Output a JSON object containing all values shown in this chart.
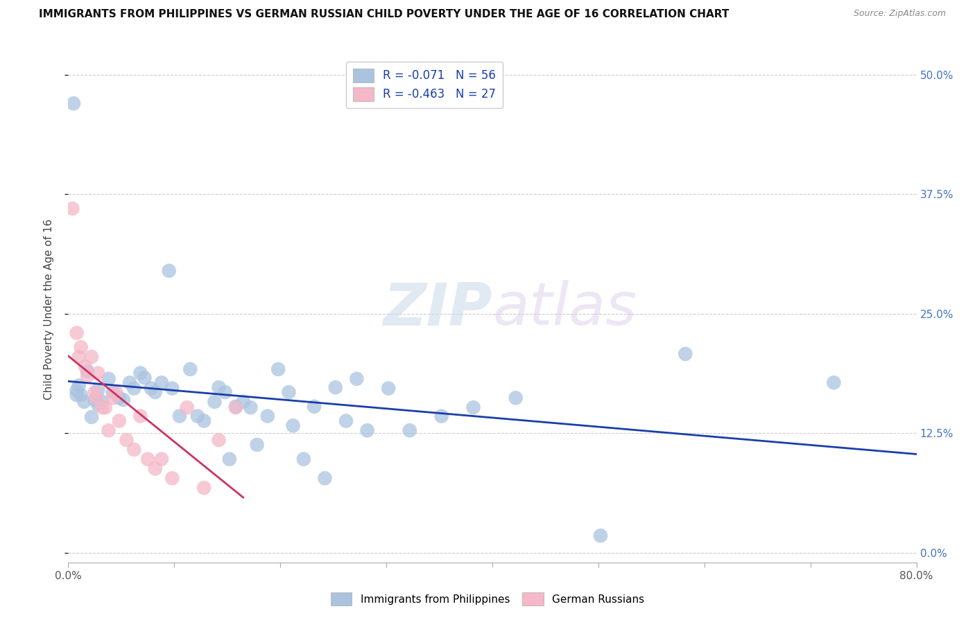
{
  "title": "IMMIGRANTS FROM PHILIPPINES VS GERMAN RUSSIAN CHILD POVERTY UNDER THE AGE OF 16 CORRELATION CHART",
  "source": "Source: ZipAtlas.com",
  "ylabel": "Child Poverty Under the Age of 16",
  "xlim": [
    0.0,
    0.8
  ],
  "ylim": [
    -0.01,
    0.52
  ],
  "legend1_label": "R = -0.071   N = 56",
  "legend2_label": "R = -0.463   N = 27",
  "blue_color": "#aac4e0",
  "pink_color": "#f4b8c8",
  "line_blue": "#1a3fa8",
  "line_pink": "#d03060",
  "watermark_zip": "ZIP",
  "watermark_atlas": "atlas",
  "philippines_x": [
    0.005,
    0.028,
    0.008,
    0.012,
    0.01,
    0.018,
    0.008,
    0.015,
    0.022,
    0.032,
    0.028,
    0.025,
    0.038,
    0.042,
    0.048,
    0.052,
    0.058,
    0.062,
    0.068,
    0.072,
    0.078,
    0.082,
    0.088,
    0.095,
    0.098,
    0.105,
    0.115,
    0.122,
    0.128,
    0.138,
    0.142,
    0.148,
    0.152,
    0.158,
    0.165,
    0.172,
    0.178,
    0.188,
    0.198,
    0.208,
    0.212,
    0.222,
    0.232,
    0.242,
    0.252,
    0.262,
    0.272,
    0.282,
    0.302,
    0.322,
    0.352,
    0.382,
    0.422,
    0.502,
    0.582,
    0.722
  ],
  "philippines_y": [
    0.47,
    0.155,
    0.17,
    0.165,
    0.175,
    0.19,
    0.165,
    0.158,
    0.142,
    0.158,
    0.17,
    0.16,
    0.182,
    0.168,
    0.162,
    0.16,
    0.178,
    0.172,
    0.188,
    0.183,
    0.172,
    0.168,
    0.178,
    0.295,
    0.172,
    0.143,
    0.192,
    0.143,
    0.138,
    0.158,
    0.173,
    0.168,
    0.098,
    0.153,
    0.158,
    0.152,
    0.113,
    0.143,
    0.192,
    0.168,
    0.133,
    0.098,
    0.153,
    0.078,
    0.173,
    0.138,
    0.182,
    0.128,
    0.172,
    0.128,
    0.143,
    0.152,
    0.162,
    0.018,
    0.208,
    0.178
  ],
  "german_russian_x": [
    0.004,
    0.008,
    0.01,
    0.012,
    0.016,
    0.018,
    0.022,
    0.025,
    0.026,
    0.028,
    0.032,
    0.035,
    0.038,
    0.042,
    0.045,
    0.048,
    0.055,
    0.062,
    0.068,
    0.075,
    0.082,
    0.088,
    0.098,
    0.112,
    0.128,
    0.142,
    0.158
  ],
  "german_russian_y": [
    0.36,
    0.23,
    0.205,
    0.215,
    0.195,
    0.185,
    0.205,
    0.168,
    0.162,
    0.188,
    0.152,
    0.152,
    0.128,
    0.162,
    0.168,
    0.138,
    0.118,
    0.108,
    0.143,
    0.098,
    0.088,
    0.098,
    0.078,
    0.152,
    0.068,
    0.118,
    0.152
  ]
}
